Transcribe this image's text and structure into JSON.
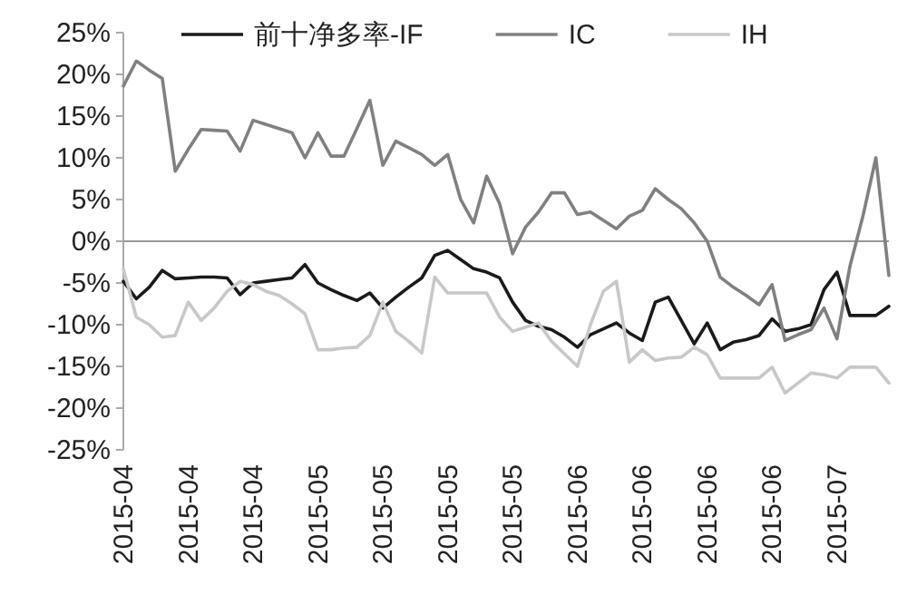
{
  "chart_data": {
    "type": "line",
    "categories": [
      "2015-04",
      null,
      null,
      null,
      null,
      "2015-04",
      null,
      null,
      null,
      null,
      "2015-04",
      null,
      null,
      null,
      null,
      "2015-05",
      null,
      null,
      null,
      null,
      "2015-05",
      null,
      null,
      null,
      null,
      "2015-05",
      null,
      null,
      null,
      null,
      "2015-05",
      null,
      null,
      null,
      null,
      "2015-06",
      null,
      null,
      null,
      null,
      "2015-06",
      null,
      null,
      null,
      null,
      "2015-06",
      null,
      null,
      null,
      null,
      "2015-06",
      null,
      null,
      null,
      null,
      "2015-07",
      null,
      null,
      null,
      null
    ],
    "series": [
      {
        "name": "前十净多率-IF",
        "color": "#1a1a1a",
        "values": [
          -4.8,
          -6.9,
          -5.5,
          -3.5,
          -4.5,
          -4.4,
          -4.3,
          -4.3,
          -4.4,
          -6.4,
          -5,
          -4.8,
          -4.6,
          -4.4,
          -2.8,
          -5,
          -5.8,
          -6.5,
          -7.1,
          -6.2,
          -8,
          -6.7,
          -5.5,
          -4.4,
          -1.7,
          -1.1,
          -2.2,
          -3.3,
          -3.7,
          -4.4,
          -7.3,
          -9.5,
          -10.2,
          -10.6,
          -11.5,
          -12.7,
          -11.2,
          -10.5,
          -9.8,
          -11,
          -11.9,
          -7.3,
          -6.7,
          -9.5,
          -12.3,
          -9.8,
          -13,
          -12.1,
          -11.8,
          -11.3,
          -9.3,
          -10.8,
          -10.5,
          -10,
          -5.8,
          -3.7,
          -8.9,
          -8.9,
          -8.9,
          -7.8
        ]
      },
      {
        "name": "IC",
        "color": "#808080",
        "values": [
          18.6,
          21.6,
          20.5,
          19.5,
          8.4,
          11,
          13.4,
          13.3,
          13.2,
          10.8,
          14.5,
          14,
          13.5,
          13,
          10,
          13,
          10.2,
          10.2,
          13.5,
          16.9,
          9.1,
          12,
          11.2,
          10.4,
          9.1,
          10.4,
          5,
          2.2,
          7.8,
          4.5,
          -1.5,
          1.7,
          3.5,
          5.8,
          5.8,
          3.2,
          3.5,
          2.5,
          1.5,
          3,
          3.7,
          6.3,
          5,
          3.9,
          2.2,
          0,
          -4.3,
          -5.5,
          -6.5,
          -7.6,
          -5.2,
          -11.9,
          -11.2,
          -10.6,
          -8,
          -11.7,
          -3,
          3,
          10,
          -4.1
        ]
      },
      {
        "name": "IH",
        "color": "#c8c8c8",
        "values": [
          -3.3,
          -9.1,
          -10,
          -11.5,
          -11.3,
          -7.3,
          -9.5,
          -8,
          -6,
          -4.8,
          -5.2,
          -6,
          -6.5,
          -7.5,
          -8.7,
          -13,
          -13,
          -12.8,
          -12.7,
          -11.3,
          -7.3,
          -10.8,
          -12,
          -13.4,
          -4.3,
          -6.2,
          -6.2,
          -6.2,
          -6.2,
          -9.1,
          -10.8,
          -10.3,
          -9.8,
          -12,
          -13.5,
          -15,
          -10,
          -6,
          -4.8,
          -14.5,
          -13,
          -14.3,
          -14,
          -13.9,
          -12.7,
          -13.6,
          -16.4,
          -16.4,
          -16.4,
          -16.4,
          -15.1,
          -18.2,
          -17,
          -15.8,
          -16,
          -16.4,
          -15.1,
          -15.1,
          -15.1,
          -17
        ]
      }
    ],
    "ylim": [
      -25,
      25
    ],
    "yticks": [
      {
        "value": -25,
        "label": "-25%"
      },
      {
        "value": -20,
        "label": "-20%"
      },
      {
        "value": -15,
        "label": "-15%"
      },
      {
        "value": -10,
        "label": "-10%"
      },
      {
        "value": -5,
        "label": "-5%"
      },
      {
        "value": 0,
        "label": "0%"
      },
      {
        "value": 5,
        "label": "5%"
      },
      {
        "value": 10,
        "label": "10%"
      },
      {
        "value": 15,
        "label": "15%"
      },
      {
        "value": 20,
        "label": "20%"
      },
      {
        "value": 25,
        "label": "25%"
      }
    ],
    "ref_lines": [
      {
        "axis": "y",
        "value": 0,
        "color": "#999999"
      }
    ],
    "legend": "top",
    "marker": "none",
    "line_style": "solid"
  }
}
